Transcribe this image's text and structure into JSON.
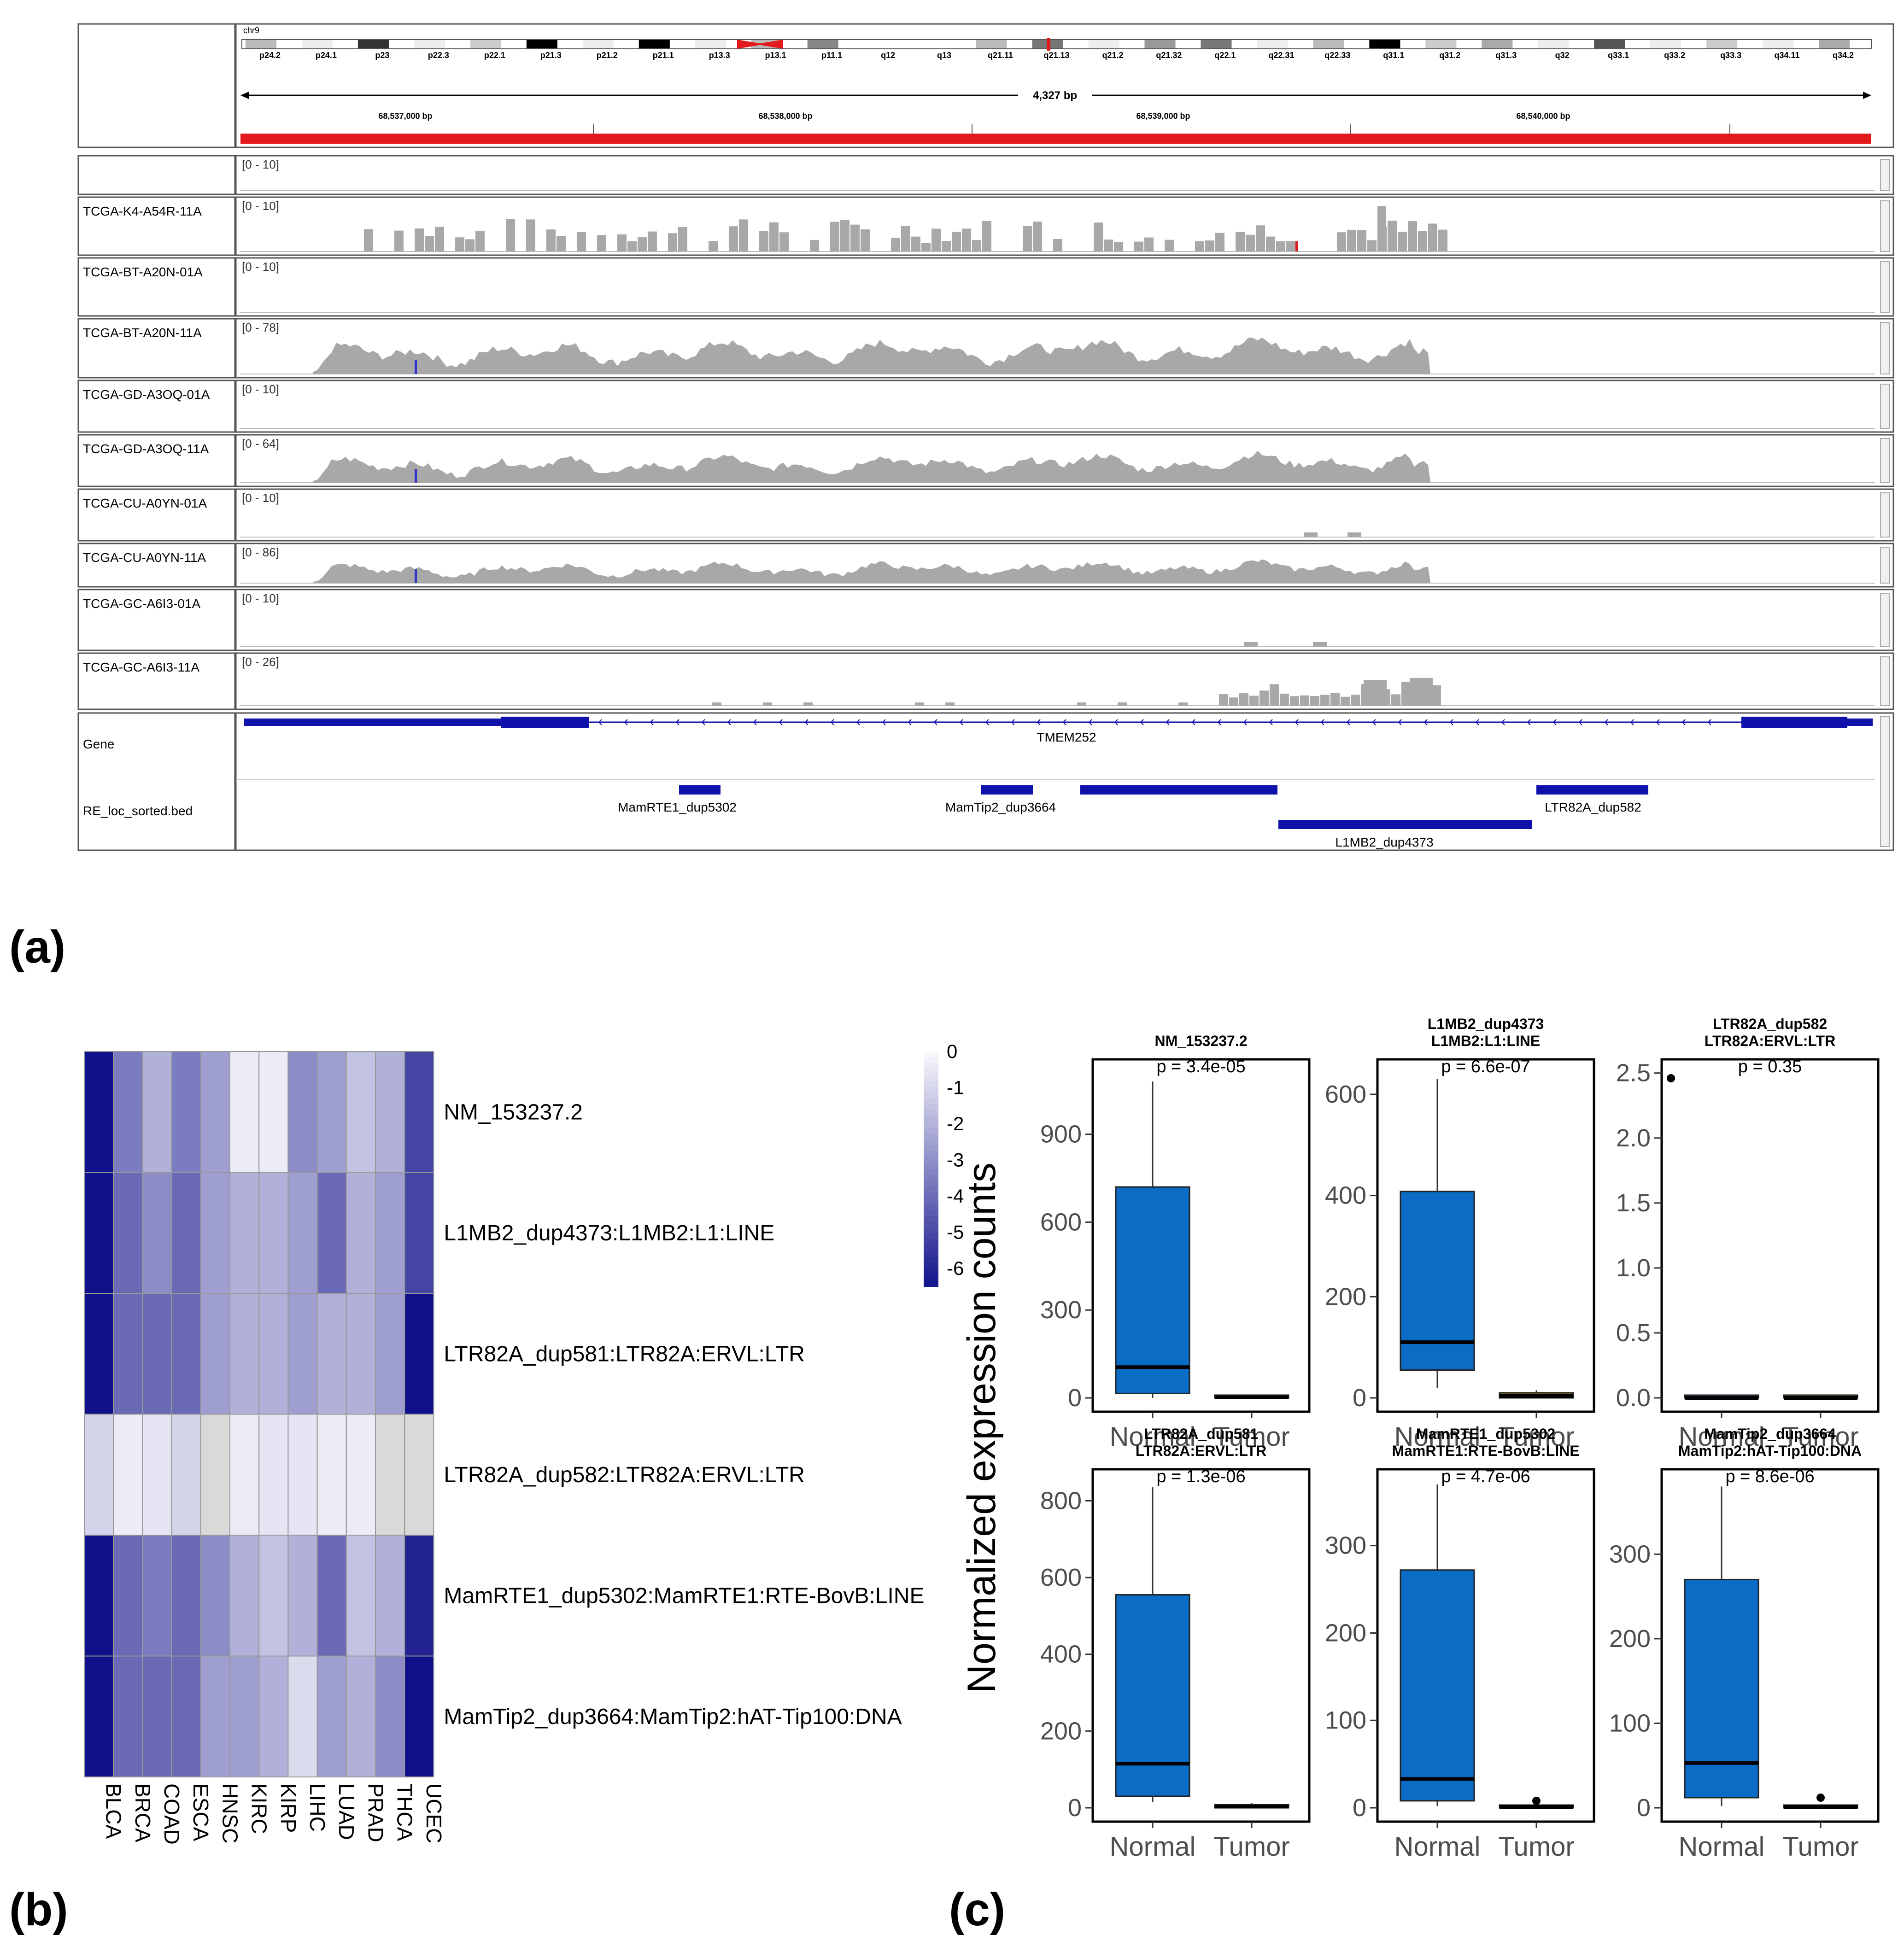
{
  "panel_labels": {
    "a": "(a)",
    "b": "(b)",
    "c": "(c)"
  },
  "colors": {
    "coverage": "#a8a8a8",
    "gene": "#1010aa",
    "ideogram_red": "#e31a1c",
    "box_fill": "#0a6cc4",
    "heat_high": "#10108a",
    "heat_low": "#f5f5fa",
    "na": "#d9d9d9"
  },
  "igv": {
    "chrom": "chr9",
    "bands": [
      "p24.2",
      "p24.1",
      "p23",
      "p22.3",
      "p22.1",
      "p21.3",
      "p21.2",
      "p21.1",
      "p13.3",
      "p13.1",
      "p11.1",
      "q12",
      "q13",
      "q21.11",
      "q21.13",
      "q21.2",
      "q21.32",
      "q22.1",
      "q22.31",
      "q22.33",
      "q31.1",
      "q31.2",
      "q31.3",
      "q32",
      "q33.1",
      "q33.2",
      "q33.3",
      "q34.11",
      "q34.2"
    ],
    "span": "4,327 bp",
    "ruler": [
      "68,537,000 bp",
      "68,538,000 bp",
      "68,539,000 bp",
      "68,540,000 bp"
    ],
    "tracks": [
      {
        "name": "",
        "range": "[0 - 10]",
        "profile": "none"
      },
      {
        "name": "TCGA-K4-A54R-11A",
        "range": "[0 - 10]",
        "profile": "sparse"
      },
      {
        "name": "TCGA-BT-A20N-01A",
        "range": "[0 - 10]",
        "profile": "none"
      },
      {
        "name": "TCGA-BT-A20N-11A",
        "range": "[0 - 78]",
        "profile": "full"
      },
      {
        "name": "TCGA-GD-A3OQ-01A",
        "range": "[0 - 10]",
        "profile": "none"
      },
      {
        "name": "TCGA-GD-A3OQ-11A",
        "range": "[0 - 64]",
        "profile": "full"
      },
      {
        "name": "TCGA-CU-A0YN-01A",
        "range": "[0 - 10]",
        "profile": "tiny"
      },
      {
        "name": "TCGA-CU-A0YN-11A",
        "range": "[0 - 86]",
        "profile": "full"
      },
      {
        "name": "TCGA-GC-A6I3-01A",
        "range": "[0 - 10]",
        "profile": "tiny"
      },
      {
        "name": "TCGA-GC-A6I3-11A",
        "range": "[0 - 26]",
        "profile": "tail"
      }
    ],
    "gene_track_label": "Gene",
    "gene_name": "TMEM252",
    "bed_track_label": "RE_loc_sorted.bed",
    "features": [
      {
        "name": "MamRTE1_dup5302"
      },
      {
        "name": "MamTip2_dup3664"
      },
      {
        "name": "L1MB2_dup4373"
      },
      {
        "name": "LTR82A_dup582"
      }
    ]
  },
  "heatmap": {
    "rows": [
      "NM_153237.2",
      "L1MB2_dup4373:L1MB2:L1:LINE",
      "LTR82A_dup581:LTR82A:ERVL:LTR",
      "LTR82A_dup582:LTR82A:ERVL:LTR",
      "MamRTE1_dup5302:MamRTE1:RTE-BovB:LINE",
      "MamTip2_dup3664:MamTip2:hAT-Tip100:DNA"
    ],
    "cols": [
      "BLCA",
      "BRCA",
      "COAD",
      "ESCA",
      "HNSC",
      "KIRC",
      "KIRP",
      "LIHC",
      "LUAD",
      "PRAD",
      "THCA",
      "UCEC"
    ],
    "values": [
      [
        -6.5,
        -3.5,
        -2.0,
        -3.5,
        -2.5,
        -0.3,
        -0.3,
        -3.0,
        -2.5,
        -1.5,
        -2.0,
        -5.0
      ],
      [
        -6.5,
        -4.0,
        -3.0,
        -4.0,
        -2.5,
        -2.0,
        -2.0,
        -2.5,
        -4.0,
        -2.0,
        -2.5,
        -5.0
      ],
      [
        -6.5,
        -4.0,
        -4.0,
        -4.0,
        -2.5,
        -2.0,
        -2.0,
        -2.5,
        -2.0,
        -2.0,
        -2.5,
        -6.5
      ],
      [
        -1.0,
        -0.3,
        -0.5,
        -1.0,
        null,
        -0.3,
        -0.5,
        -0.5,
        -0.3,
        -0.3,
        null,
        null
      ],
      [
        -6.5,
        -4.0,
        -3.5,
        -4.0,
        -3.0,
        -2.0,
        -1.5,
        -2.0,
        -4.0,
        -1.5,
        -2.0,
        -6.0
      ],
      [
        -6.5,
        -4.0,
        -4.0,
        -4.0,
        -2.5,
        -2.5,
        -2.0,
        -0.8,
        -2.5,
        -2.0,
        -3.0,
        -6.5
      ]
    ],
    "scale_min": -6.5,
    "scale_max": 0,
    "colorbar_ticks": [
      "0",
      "-1",
      "-2",
      "-3",
      "-4",
      "-5",
      "-6"
    ]
  },
  "boxplots": {
    "ylabel": "Normalized expression counts",
    "groups": [
      "Normal",
      "Tumor"
    ],
    "panels": [
      {
        "title": [
          "NM_153237.2"
        ],
        "p": "p = 3.4e-05",
        "ymax": 1140,
        "yticks": [
          "0",
          "300",
          "600",
          "900"
        ],
        "normal": {
          "min": 0,
          "q1": 15,
          "med": 105,
          "q3": 720,
          "max": 1080
        },
        "tumor": {
          "min": 0,
          "q1": 0,
          "med": 2,
          "q3": 8,
          "max": 12
        },
        "outlier": null
      },
      {
        "title": [
          "L1MB2_dup4373",
          "L1MB2:L1:LINE"
        ],
        "p": "p = 6.6e-07",
        "ymax": 660,
        "yticks": [
          "0",
          "200",
          "400",
          "600"
        ],
        "normal": {
          "min": 20,
          "q1": 55,
          "med": 110,
          "q3": 408,
          "max": 630
        },
        "tumor": {
          "min": 0,
          "q1": 0,
          "med": 4,
          "q3": 10,
          "max": 15
        },
        "outlier": null
      },
      {
        "title": [
          "LTR82A_dup582",
          "LTR82A:ERVL:LTR"
        ],
        "p": "p = 0.35",
        "ymax": 2.57,
        "yticks": [
          "0.0",
          "0.5",
          "1.0",
          "1.5",
          "2.0",
          "2.5"
        ],
        "normal": {
          "min": 0,
          "q1": 0,
          "med": 0,
          "q3": 0,
          "max": 0
        },
        "tumor": {
          "min": 0,
          "q1": 0,
          "med": 0,
          "q3": 0,
          "max": 0
        },
        "outlier": {
          "group": 0,
          "value": 2.46
        }
      },
      {
        "title": [
          "LTR82A_dup581",
          "LTR82A:ERVL:LTR"
        ],
        "p": "p = 1.3e-06",
        "ymax": 870,
        "yticks": [
          "0",
          "200",
          "400",
          "600",
          "800"
        ],
        "normal": {
          "min": 15,
          "q1": 30,
          "med": 115,
          "q3": 555,
          "max": 835
        },
        "tumor": {
          "min": 0,
          "q1": 0,
          "med": 3,
          "q3": 8,
          "max": 12
        },
        "outlier": null
      },
      {
        "title": [
          "MamRTE1_dup5302",
          "MamRTE1:RTE-BovB:LINE"
        ],
        "p": "p = 4.7e-06",
        "ymax": 382,
        "yticks": [
          "0",
          "100",
          "200",
          "300"
        ],
        "normal": {
          "min": 2,
          "q1": 8,
          "med": 33,
          "q3": 272,
          "max": 370
        },
        "tumor": {
          "min": 0,
          "q1": 0,
          "med": 1,
          "q3": 2,
          "max": 4
        },
        "outlier": {
          "group": 1,
          "value": 8
        }
      },
      {
        "title": [
          "MamTip2_dup3664",
          "MamTip2:hAT-Tip100:DNA"
        ],
        "p": "p = 8.6e-06",
        "ymax": 395,
        "yticks": [
          "0",
          "100",
          "200",
          "300"
        ],
        "normal": {
          "min": 2,
          "q1": 12,
          "med": 53,
          "q3": 270,
          "max": 380
        },
        "tumor": {
          "min": 0,
          "q1": 0,
          "med": 1,
          "q3": 2,
          "max": 4
        },
        "outlier": {
          "group": 1,
          "value": 12
        }
      }
    ]
  }
}
